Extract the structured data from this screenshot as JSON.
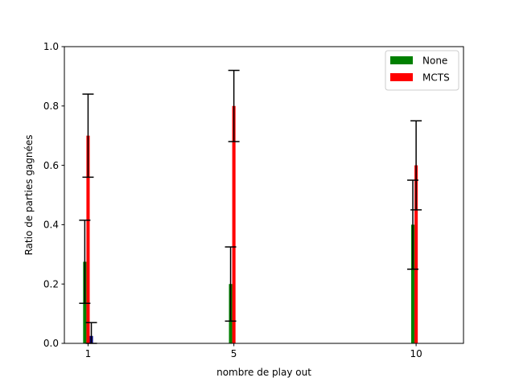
{
  "chart_data": {
    "type": "bar",
    "xlabel": "nombre de play out",
    "ylabel": "Ratio de parties gagnées",
    "ylim": [
      0,
      1.0
    ],
    "xlim": [
      0.35,
      11.3
    ],
    "yticks": [
      "0.0",
      "0.2",
      "0.4",
      "0.6",
      "0.8",
      "1.0"
    ],
    "yticks_values": [
      0.0,
      0.2,
      0.4,
      0.6,
      0.8,
      1.0
    ],
    "x": [
      1,
      5,
      10
    ],
    "xtick_labels": [
      "1",
      "5",
      "10"
    ],
    "grid": false,
    "legend_position": "top-right",
    "series": [
      {
        "name": "None",
        "color": "#008000",
        "offset": -0.09,
        "values": [
          0.275,
          0.2,
          0.4
        ],
        "err_lower": [
          0.14,
          0.125,
          0.15
        ],
        "err_upper": [
          0.14,
          0.125,
          0.15
        ]
      },
      {
        "name": "MCTS",
        "color": "#ff0000",
        "offset": 0.0,
        "values": [
          0.7,
          0.8,
          0.6
        ],
        "err_lower": [
          0.14,
          0.12,
          0.15
        ],
        "err_upper": [
          0.14,
          0.12,
          0.15
        ]
      },
      {
        "name": "",
        "color": "#00008b",
        "offset": 0.09,
        "values": [
          0.025,
          0.0,
          0.0
        ],
        "err_lower": [
          0.025,
          0.0,
          0.0
        ],
        "err_upper": [
          0.045,
          0.0,
          0.0
        ]
      }
    ],
    "legend": [
      {
        "label": "None",
        "color": "#008000"
      },
      {
        "label": "MCTS",
        "color": "#ff0000"
      }
    ]
  }
}
